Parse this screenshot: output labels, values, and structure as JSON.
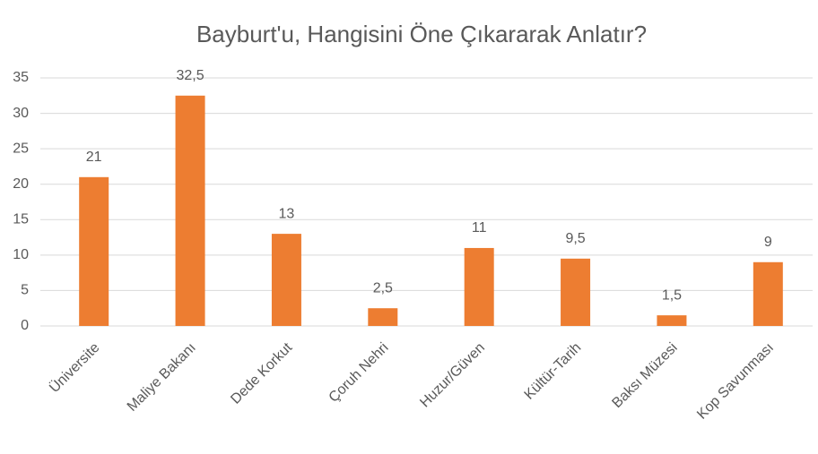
{
  "chart_data": {
    "type": "bar",
    "title": "Bayburt'u, Hangisini Öne Çıkararak Anlatır?",
    "categories": [
      "Üniversite",
      "Maliye Bakanı",
      "Dede Korkut",
      "Çoruh Nehri",
      "Huzur/Güven",
      "Kültür-Tarih",
      "Baksı Müzesi",
      "Kop Savunması"
    ],
    "values": [
      21,
      32.5,
      13,
      2.5,
      11,
      9.5,
      1.5,
      9
    ],
    "value_labels": [
      "21",
      "32,5",
      "13",
      "2,5",
      "11",
      "9,5",
      "1,5",
      "9"
    ],
    "color": "#ed7d31",
    "ylim": [
      0,
      35
    ],
    "yticks": [
      0,
      5,
      10,
      15,
      20,
      25,
      30,
      35
    ],
    "grid": true
  }
}
